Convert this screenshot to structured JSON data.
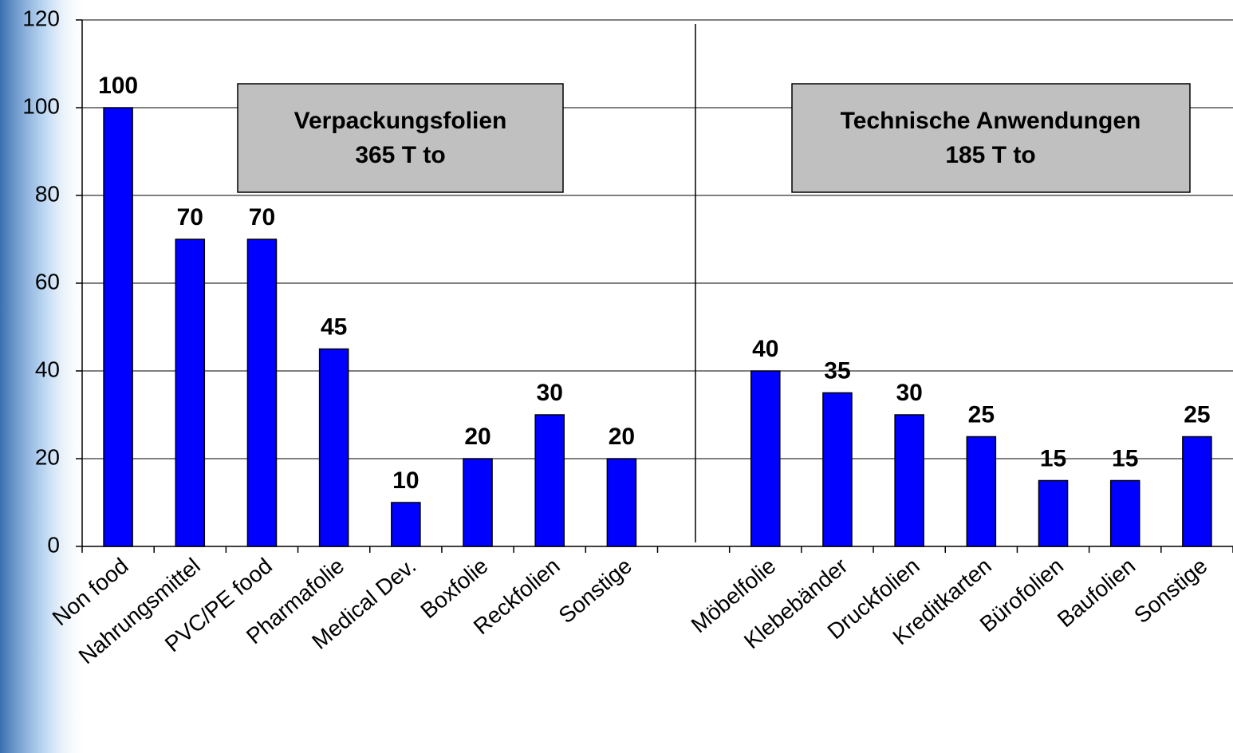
{
  "chart_data": {
    "type": "bar",
    "categories": [
      "Non food",
      "Nahrungsmittel",
      "PVC/PE food",
      "Pharmafolie",
      "Medical Dev.",
      "Boxfolie",
      "Reckfolien",
      "Sonstige",
      null,
      "Möbelfolie",
      "Klebebänder",
      "Druckfolien",
      "Kreditkarten",
      "Bürofolien",
      "Baufolien",
      "Sonstige"
    ],
    "values": [
      100,
      70,
      70,
      45,
      10,
      20,
      30,
      20,
      null,
      40,
      35,
      30,
      25,
      15,
      15,
      25
    ],
    "color": "#0000ff",
    "ylim": [
      0,
      120
    ],
    "yticks": [
      0,
      20,
      40,
      60,
      80,
      100,
      120
    ],
    "grid": true,
    "annotations": [
      {
        "lines": [
          "Verpackungsfolien",
          "365 T to"
        ]
      },
      {
        "lines": [
          "Technische Anwendungen",
          "185 T to"
        ]
      }
    ]
  }
}
